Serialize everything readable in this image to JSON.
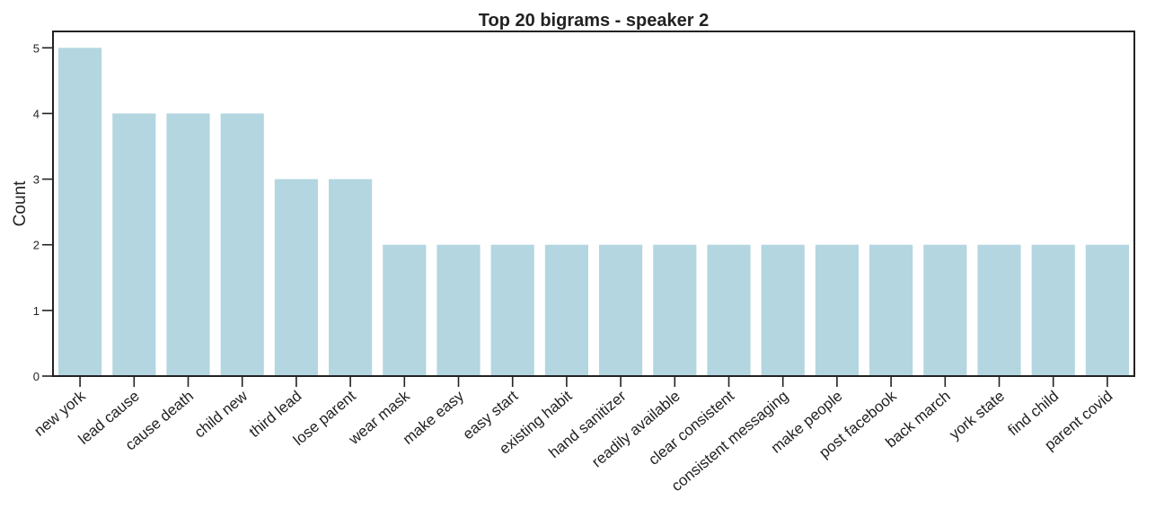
{
  "chart_data": {
    "type": "bar",
    "title": "Top 20 bigrams - speaker 2",
    "xlabel": "",
    "ylabel": "Count",
    "categories": [
      "new york",
      "lead cause",
      "cause death",
      "child new",
      "third lead",
      "lose parent",
      "wear mask",
      "make easy",
      "easy start",
      "existing habit",
      "hand sanitizer",
      "readily available",
      "clear consistent",
      "consistent messaging",
      "make people",
      "post facebook",
      "back march",
      "york state",
      "find child",
      "parent covid"
    ],
    "values": [
      5,
      4,
      4,
      4,
      3,
      3,
      2,
      2,
      2,
      2,
      2,
      2,
      2,
      2,
      2,
      2,
      2,
      2,
      2,
      2
    ],
    "ylim": [
      0,
      5.25
    ],
    "yticks": [
      0,
      1,
      2,
      3,
      4,
      5
    ],
    "grid": false,
    "bar_color": "#b3d6e0"
  }
}
